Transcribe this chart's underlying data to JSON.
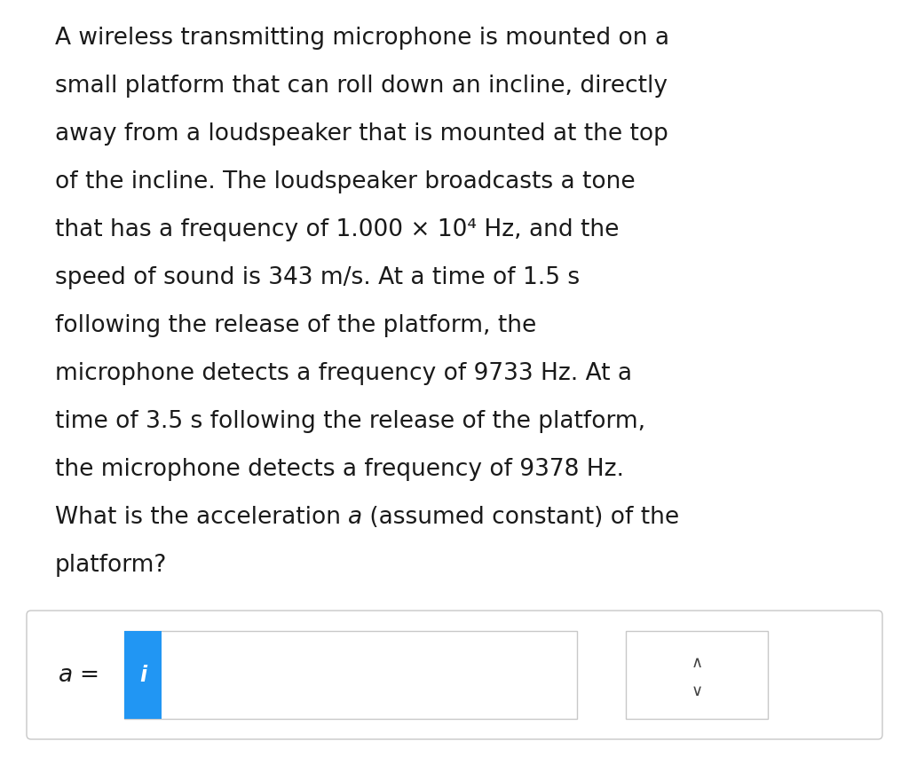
{
  "background_color": "#ffffff",
  "page_bg": "#f0f0f0",
  "text_lines": [
    [
      "A wireless transmitting microphone is mounted on a"
    ],
    [
      "small platform that can roll down an incline, directly"
    ],
    [
      "away from a loudspeaker that is mounted at the top"
    ],
    [
      "of the incline. The loudspeaker broadcasts a tone"
    ],
    [
      "that has a frequency of 1.000 × 10⁴ Hz, and the"
    ],
    [
      "speed of sound is 343 m/s. At a time of 1.5 s"
    ],
    [
      "following the release of the platform, the"
    ],
    [
      "microphone detects a frequency of 9733 Hz. At a"
    ],
    [
      "time of 3.5 s following the release of the platform,"
    ],
    [
      "the microphone detects a frequency of 9378 Hz."
    ],
    [
      "What is the acceleration ",
      "a",
      " (assumed constant) of the"
    ],
    [
      "platform?"
    ]
  ],
  "line_italic": [
    false,
    false,
    false,
    false,
    false,
    false,
    false,
    false,
    false,
    false,
    true,
    false
  ],
  "label_italic_a": true,
  "icon_text": "i",
  "icon_color": "#2196F3",
  "icon_text_color": "#ffffff",
  "box_border_color": "#c8c8c8",
  "outer_box_border_color": "#c8c8c8",
  "font_size_pt": 19,
  "text_color": "#1a1a1a",
  "arrow_color": "#444444"
}
